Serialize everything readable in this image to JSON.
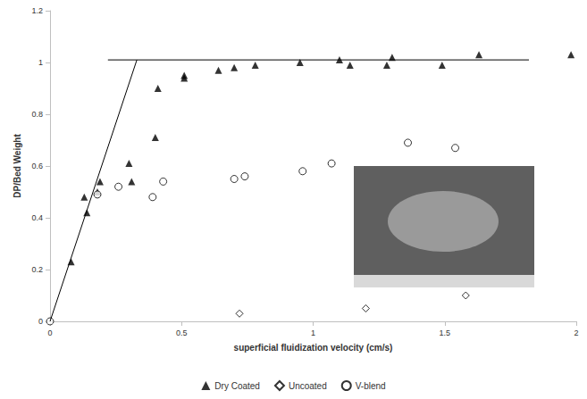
{
  "chart_data": {
    "type": "scatter",
    "x_label": "superficial fluidization velocity (cm/s)",
    "y_label": "DP/Bed Weight",
    "xlim": [
      0,
      2
    ],
    "xticks": [
      0,
      0.5,
      1,
      1.5,
      2
    ],
    "ylim": [
      0,
      1.2
    ],
    "yticks": [
      0,
      0.2,
      0.4,
      0.6,
      0.8,
      1,
      1.2
    ],
    "grid": false,
    "legend": "bottom",
    "series": [
      {
        "name": "Dry Coated",
        "color": "#000000",
        "marker": "triangle",
        "x": [
          0.08,
          0.13,
          0.14,
          0.18,
          0.19,
          0.3,
          0.31,
          0.4,
          0.41,
          0.51,
          0.51,
          0.64,
          0.7,
          0.78,
          0.95,
          1.1,
          1.14,
          1.28,
          1.3,
          1.49,
          1.63,
          1.98
        ],
        "values": [
          0.23,
          0.48,
          0.42,
          0.5,
          0.54,
          0.61,
          0.54,
          0.71,
          0.9,
          0.94,
          0.95,
          0.97,
          0.98,
          0.99,
          1.0,
          1.01,
          0.99,
          0.99,
          1.02,
          0.99,
          1.03,
          1.03
        ]
      },
      {
        "name": "Uncoated",
        "color": "#000000",
        "marker": "open_diamond",
        "x": [
          0.72,
          1.2,
          1.58
        ],
        "values": [
          0.03,
          0.05,
          0.1
        ]
      },
      {
        "name": "V-blend",
        "color": "#000000",
        "marker": "open_circle",
        "x": [
          0,
          0.18,
          0.26,
          0.39,
          0.43,
          0.7,
          0.74,
          0.96,
          1.07,
          1.36,
          1.54
        ],
        "values": [
          0,
          0.49,
          0.52,
          0.48,
          0.54,
          0.55,
          0.56,
          0.58,
          0.61,
          0.69,
          0.67
        ]
      }
    ],
    "fit_lines": [
      {
        "color": "#000000",
        "x": [
          0,
          0.33
        ],
        "values": [
          0,
          1.01
        ]
      },
      {
        "color": "#000000",
        "x": [
          0.22,
          1.82
        ],
        "values": [
          1.01,
          1.01
        ]
      }
    ]
  }
}
